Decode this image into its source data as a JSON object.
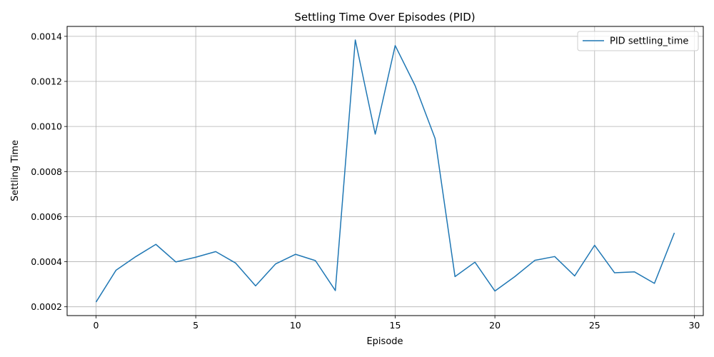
{
  "chart_data": {
    "type": "line",
    "title": "Settling Time Over Episodes (PID)",
    "xlabel": "Episode",
    "ylabel": "Settling Time",
    "xlim": [
      -1.45,
      30.45
    ],
    "ylim": [
      0.000161,
      0.001444
    ],
    "xticks": [
      0,
      5,
      10,
      15,
      20,
      25,
      30
    ],
    "xtick_labels": [
      "0",
      "5",
      "10",
      "15",
      "20",
      "25",
      "30"
    ],
    "yticks": [
      0.0002,
      0.0004,
      0.0006,
      0.0008,
      0.001,
      0.0012,
      0.0014
    ],
    "ytick_labels": [
      "0.0002",
      "0.0004",
      "0.0006",
      "0.0008",
      "0.0010",
      "0.0012",
      "0.0014"
    ],
    "grid": true,
    "legend_position": "top-right",
    "series": [
      {
        "name": "PID settling_time",
        "color": "#1f77b4",
        "x": [
          0,
          1,
          2,
          3,
          4,
          5,
          6,
          7,
          8,
          9,
          10,
          11,
          12,
          13,
          14,
          15,
          16,
          17,
          18,
          19,
          20,
          21,
          22,
          23,
          24,
          25,
          26,
          27,
          28,
          29
        ],
        "values": [
          0.000221,
          0.000362,
          0.000423,
          0.000477,
          0.000399,
          0.00042,
          0.000445,
          0.000394,
          0.000293,
          0.00039,
          0.000433,
          0.000405,
          0.000272,
          0.001384,
          0.000966,
          0.001359,
          0.001181,
          0.000947,
          0.000334,
          0.000398,
          0.00027,
          0.000334,
          0.000406,
          0.000423,
          0.000337,
          0.000473,
          0.000351,
          0.000355,
          0.000304,
          0.000528
        ]
      }
    ]
  }
}
